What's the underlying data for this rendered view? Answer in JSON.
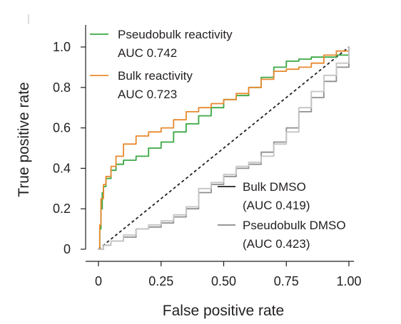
{
  "chart_data": {
    "type": "line",
    "title": "",
    "xlabel": "False positive rate",
    "ylabel": "True positive rate",
    "xlim": [
      0,
      1
    ],
    "ylim": [
      0,
      1
    ],
    "xticks": [
      "0",
      "0.25",
      "0.50",
      "0.75",
      "1.00"
    ],
    "yticks": [
      "0",
      "0.2",
      "0.4",
      "0.6",
      "0.8",
      "1.0"
    ],
    "grid": false,
    "diagonal_reference": true,
    "legends": [
      {
        "placement": "top-left",
        "entries": [
          {
            "label": "Pseudobulk reactivity",
            "sub": "AUC 0.742",
            "color": "#3aa743"
          },
          {
            "label": "Bulk reactivity",
            "sub": "AUC 0.723",
            "color": "#e8892f"
          }
        ]
      },
      {
        "placement": "bottom-right",
        "entries": [
          {
            "label": "Bulk DMSO",
            "sub": "(AUC 0.419)",
            "color": "#231f20"
          },
          {
            "label": "Pseudobulk DMSO",
            "sub": "(AUC 0.423)",
            "color": "#8a8a8a"
          }
        ]
      }
    ],
    "series": [
      {
        "name": "Pseudobulk reactivity",
        "color": "#3aa743",
        "x": [
          0,
          0.005,
          0.01,
          0.015,
          0.02,
          0.03,
          0.05,
          0.07,
          0.1,
          0.15,
          0.2,
          0.25,
          0.3,
          0.35,
          0.4,
          0.45,
          0.5,
          0.55,
          0.6,
          0.65,
          0.7,
          0.75,
          0.8,
          0.85,
          0.9,
          0.95,
          1.0
        ],
        "y": [
          0,
          0.1,
          0.2,
          0.28,
          0.31,
          0.35,
          0.39,
          0.42,
          0.44,
          0.46,
          0.5,
          0.53,
          0.58,
          0.62,
          0.66,
          0.7,
          0.74,
          0.76,
          0.8,
          0.85,
          0.9,
          0.93,
          0.94,
          0.95,
          0.95,
          0.96,
          1.0
        ]
      },
      {
        "name": "Bulk reactivity",
        "color": "#e8892f",
        "x": [
          0,
          0.005,
          0.01,
          0.02,
          0.03,
          0.05,
          0.07,
          0.1,
          0.15,
          0.2,
          0.25,
          0.3,
          0.35,
          0.4,
          0.45,
          0.5,
          0.55,
          0.6,
          0.65,
          0.7,
          0.75,
          0.8,
          0.85,
          0.9,
          0.95,
          1.0
        ],
        "y": [
          0,
          0.12,
          0.25,
          0.32,
          0.36,
          0.41,
          0.46,
          0.52,
          0.56,
          0.58,
          0.6,
          0.64,
          0.68,
          0.7,
          0.72,
          0.74,
          0.77,
          0.8,
          0.84,
          0.88,
          0.89,
          0.9,
          0.92,
          0.96,
          0.98,
          1.0
        ]
      },
      {
        "name": "Bulk DMSO",
        "color": "#8e8e8e",
        "x": [
          0,
          0.02,
          0.05,
          0.1,
          0.15,
          0.2,
          0.25,
          0.3,
          0.35,
          0.4,
          0.45,
          0.5,
          0.55,
          0.6,
          0.65,
          0.7,
          0.75,
          0.8,
          0.85,
          0.9,
          0.95,
          1.0
        ],
        "y": [
          0,
          0.02,
          0.04,
          0.06,
          0.1,
          0.11,
          0.13,
          0.16,
          0.2,
          0.28,
          0.32,
          0.36,
          0.4,
          0.42,
          0.48,
          0.53,
          0.6,
          0.68,
          0.75,
          0.83,
          0.9,
          1.0
        ]
      },
      {
        "name": "Pseudobulk DMSO",
        "color": "#c4c4c4",
        "x": [
          0,
          0.02,
          0.05,
          0.1,
          0.15,
          0.2,
          0.25,
          0.3,
          0.35,
          0.4,
          0.45,
          0.5,
          0.55,
          0.6,
          0.65,
          0.7,
          0.75,
          0.8,
          0.85,
          0.9,
          0.95,
          1.0
        ],
        "y": [
          0,
          0.02,
          0.04,
          0.07,
          0.1,
          0.12,
          0.14,
          0.17,
          0.21,
          0.3,
          0.33,
          0.37,
          0.41,
          0.43,
          0.46,
          0.52,
          0.58,
          0.7,
          0.78,
          0.86,
          0.92,
          1.0
        ]
      }
    ]
  }
}
